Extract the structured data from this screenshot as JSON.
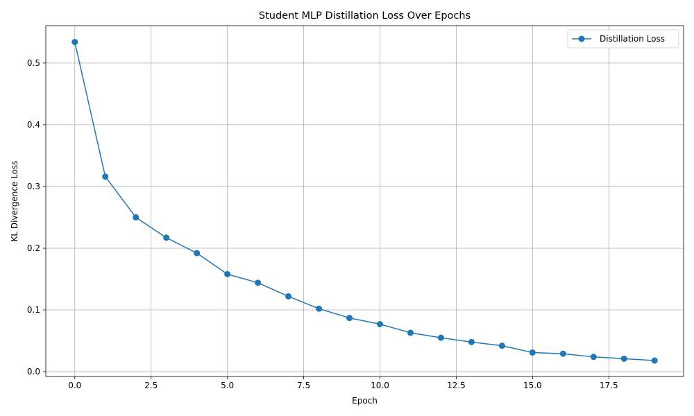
{
  "chart_data": {
    "type": "line",
    "title": "Student MLP Distillation Loss Over Epochs",
    "xlabel": "Epoch",
    "ylabel": "KL Divergence Loss",
    "xlim": [
      -0.95,
      19.95
    ],
    "ylim": [
      -0.0078,
      0.5605
    ],
    "xticks": [
      0.0,
      2.5,
      5.0,
      7.5,
      10.0,
      12.5,
      15.0,
      17.5
    ],
    "xtick_labels": [
      "0.0",
      "2.5",
      "5.0",
      "7.5",
      "10.0",
      "12.5",
      "15.0",
      "17.5"
    ],
    "yticks": [
      0.0,
      0.1,
      0.2,
      0.3,
      0.4,
      0.5
    ],
    "ytick_labels": [
      "0.0",
      "0.1",
      "0.2",
      "0.3",
      "0.4",
      "0.5"
    ],
    "grid": true,
    "legend_position": "top-right",
    "series": [
      {
        "name": "Distillation Loss",
        "color": "#1f77b4",
        "marker": "circle",
        "x": [
          0,
          1,
          2,
          3,
          4,
          5,
          6,
          7,
          8,
          9,
          10,
          11,
          12,
          13,
          14,
          15,
          16,
          17,
          18,
          19
        ],
        "y": [
          0.534,
          0.316,
          0.25,
          0.217,
          0.192,
          0.158,
          0.144,
          0.122,
          0.102,
          0.087,
          0.077,
          0.063,
          0.055,
          0.048,
          0.042,
          0.031,
          0.029,
          0.024,
          0.021,
          0.018
        ]
      }
    ]
  }
}
